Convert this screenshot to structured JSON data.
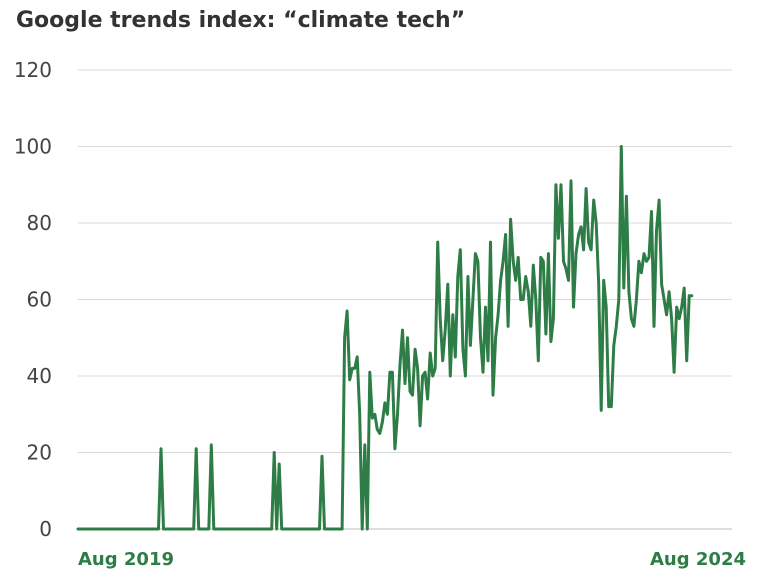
{
  "chart_data": {
    "type": "line",
    "title": "Google trends index: “climate tech”",
    "xlabel": "",
    "ylabel": "",
    "ylim": [
      0,
      120
    ],
    "xlim": [
      0,
      260
    ],
    "x_unit": "weeks",
    "y_ticks": [
      "0",
      "20",
      "40",
      "60",
      "80",
      "100",
      "120"
    ],
    "x_ticks": [
      {
        "x": 0,
        "label": "Aug 2019"
      },
      {
        "x": 260,
        "label": "Aug 2024"
      }
    ],
    "grid": true,
    "color": "#2e7d46",
    "series": [
      {
        "values": [
          [
            0,
            0
          ],
          [
            32,
            0
          ],
          [
            33,
            21
          ],
          [
            34,
            0
          ],
          [
            46,
            0
          ],
          [
            47,
            21
          ],
          [
            48,
            0
          ],
          [
            52,
            0
          ],
          [
            53,
            22
          ],
          [
            54,
            0
          ],
          [
            77,
            0
          ],
          [
            78,
            20
          ],
          [
            79,
            0
          ],
          [
            80,
            17
          ],
          [
            81,
            0
          ],
          [
            96,
            0
          ],
          [
            97,
            19
          ],
          [
            98,
            0
          ],
          [
            105,
            0
          ],
          [
            106,
            50
          ],
          [
            107,
            57
          ],
          [
            108,
            39
          ],
          [
            109,
            42
          ],
          [
            110,
            42
          ],
          [
            111,
            45
          ],
          [
            112,
            30
          ],
          [
            113,
            0
          ],
          [
            114,
            22
          ],
          [
            115,
            0
          ],
          [
            116,
            41
          ],
          [
            117,
            29
          ],
          [
            118,
            30
          ],
          [
            119,
            26
          ],
          [
            120,
            25
          ],
          [
            121,
            28
          ],
          [
            122,
            33
          ],
          [
            123,
            30
          ],
          [
            124,
            41
          ],
          [
            125,
            41
          ],
          [
            126,
            21
          ],
          [
            127,
            30
          ],
          [
            128,
            43
          ],
          [
            129,
            52
          ],
          [
            130,
            38
          ],
          [
            131,
            50
          ],
          [
            132,
            36
          ],
          [
            133,
            35
          ],
          [
            134,
            47
          ],
          [
            135,
            42
          ],
          [
            136,
            27
          ],
          [
            137,
            40
          ],
          [
            138,
            41
          ],
          [
            139,
            34
          ],
          [
            140,
            46
          ],
          [
            141,
            40
          ],
          [
            142,
            42
          ],
          [
            143,
            75
          ],
          [
            144,
            55
          ],
          [
            145,
            44
          ],
          [
            146,
            52
          ],
          [
            147,
            64
          ],
          [
            148,
            40
          ],
          [
            149,
            56
          ],
          [
            150,
            45
          ],
          [
            151,
            66
          ],
          [
            152,
            73
          ],
          [
            153,
            47
          ],
          [
            154,
            40
          ],
          [
            155,
            66
          ],
          [
            156,
            48
          ],
          [
            157,
            60
          ],
          [
            158,
            72
          ],
          [
            159,
            70
          ],
          [
            160,
            50
          ],
          [
            161,
            41
          ],
          [
            162,
            58
          ],
          [
            163,
            44
          ],
          [
            164,
            75
          ],
          [
            165,
            35
          ],
          [
            166,
            50
          ],
          [
            167,
            56
          ],
          [
            168,
            65
          ],
          [
            169,
            70
          ],
          [
            170,
            77
          ],
          [
            171,
            53
          ],
          [
            172,
            81
          ],
          [
            173,
            70
          ],
          [
            174,
            65
          ],
          [
            175,
            71
          ],
          [
            176,
            60
          ],
          [
            177,
            60
          ],
          [
            178,
            66
          ],
          [
            179,
            62
          ],
          [
            180,
            53
          ],
          [
            181,
            69
          ],
          [
            182,
            60
          ],
          [
            183,
            44
          ],
          [
            184,
            71
          ],
          [
            185,
            70
          ],
          [
            186,
            51
          ],
          [
            187,
            72
          ],
          [
            188,
            49
          ],
          [
            189,
            55
          ],
          [
            190,
            90
          ],
          [
            191,
            76
          ],
          [
            192,
            90
          ],
          [
            193,
            70
          ],
          [
            194,
            68
          ],
          [
            195,
            65
          ],
          [
            196,
            91
          ],
          [
            197,
            58
          ],
          [
            198,
            72
          ],
          [
            199,
            77
          ],
          [
            200,
            79
          ],
          [
            201,
            73
          ],
          [
            202,
            89
          ],
          [
            203,
            75
          ],
          [
            204,
            73
          ],
          [
            205,
            86
          ],
          [
            206,
            80
          ],
          [
            207,
            64
          ],
          [
            208,
            31
          ],
          [
            209,
            65
          ],
          [
            210,
            58
          ],
          [
            211,
            32
          ],
          [
            212,
            32
          ],
          [
            213,
            48
          ],
          [
            214,
            53
          ],
          [
            215,
            60
          ],
          [
            216,
            100
          ],
          [
            217,
            63
          ],
          [
            218,
            87
          ],
          [
            219,
            62
          ],
          [
            220,
            55
          ],
          [
            221,
            53
          ],
          [
            222,
            60
          ],
          [
            223,
            70
          ],
          [
            224,
            67
          ],
          [
            225,
            72
          ],
          [
            226,
            70
          ],
          [
            227,
            71
          ],
          [
            228,
            83
          ],
          [
            229,
            53
          ],
          [
            230,
            78
          ],
          [
            231,
            86
          ],
          [
            232,
            64
          ],
          [
            233,
            60
          ],
          [
            234,
            56
          ],
          [
            235,
            62
          ],
          [
            236,
            55
          ],
          [
            237,
            41
          ],
          [
            238,
            58
          ],
          [
            239,
            55
          ],
          [
            240,
            58
          ],
          [
            241,
            63
          ],
          [
            242,
            44
          ],
          [
            243,
            61
          ],
          [
            244,
            61
          ]
        ]
      }
    ]
  }
}
